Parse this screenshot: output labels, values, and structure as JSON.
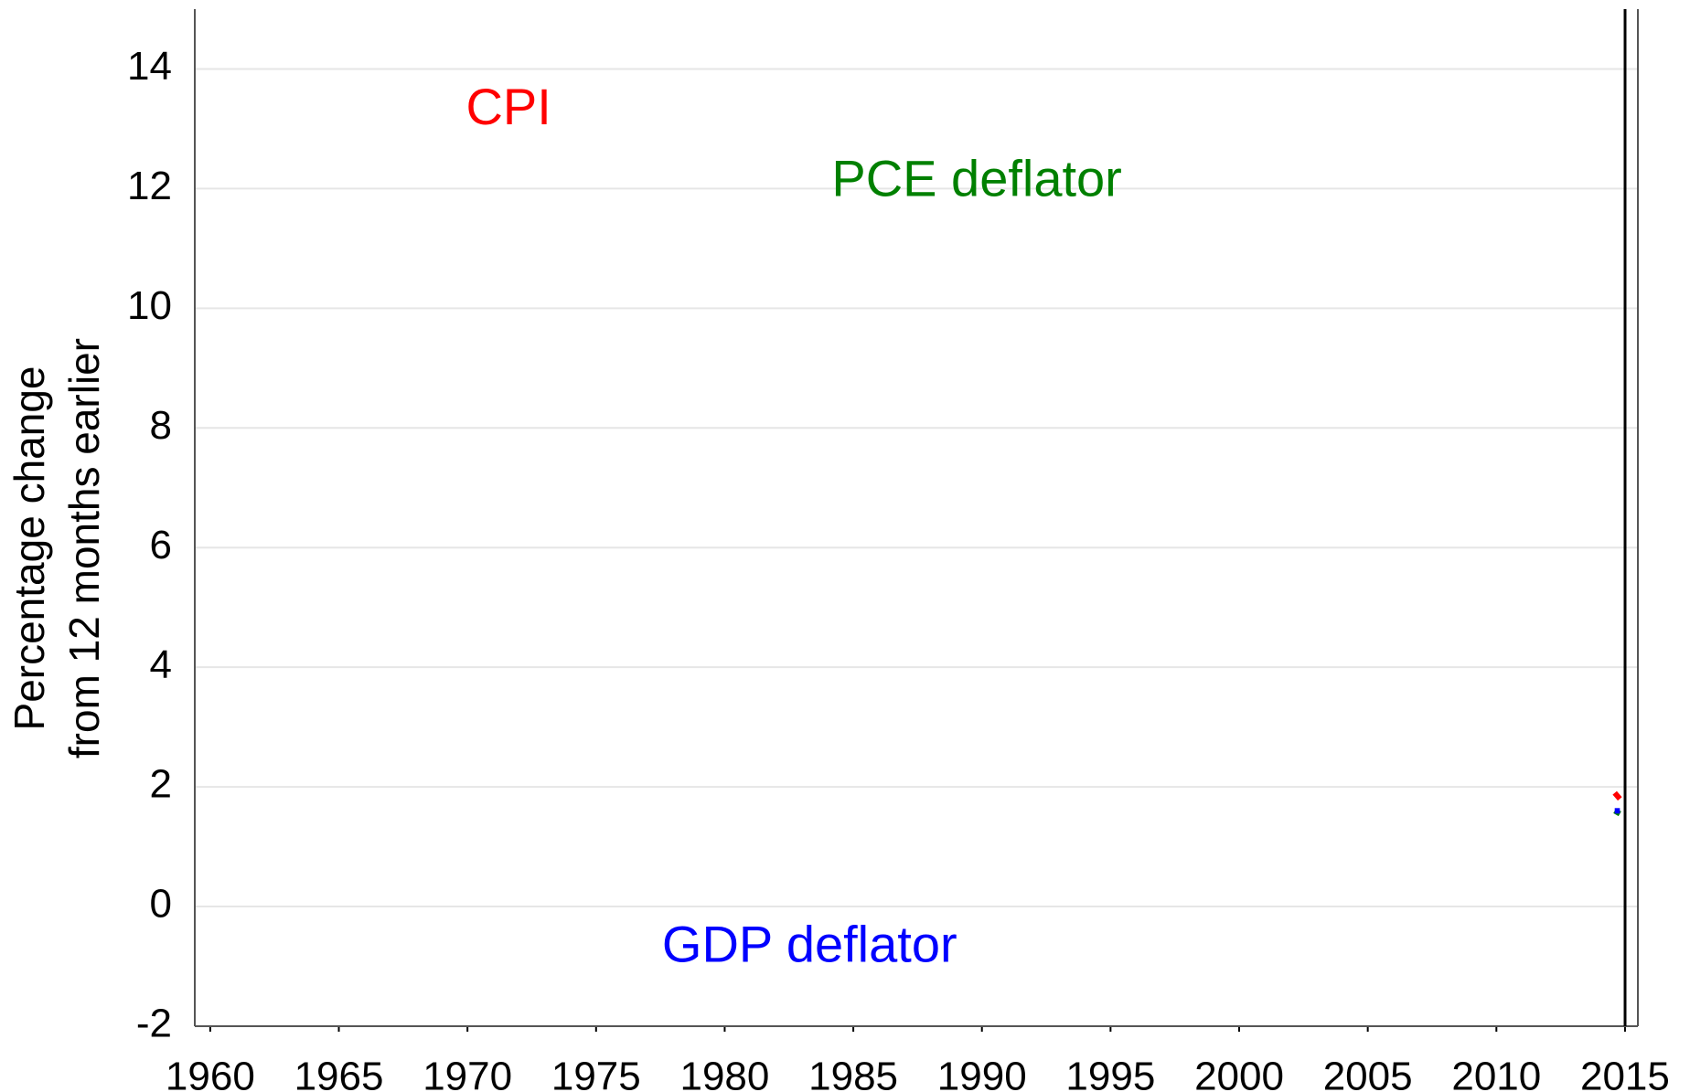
{
  "chart_data": {
    "type": "line",
    "ylabel": [
      "Percentage change",
      "from 12 months earlier"
    ],
    "x": [
      2014.6,
      2014.8
    ],
    "series": [
      {
        "name": "CPI",
        "color": "#ff0000",
        "values": [
          1.9,
          1.8
        ]
      },
      {
        "name": "PCE deflator",
        "color": "#008000",
        "values": [
          1.6,
          1.55
        ]
      },
      {
        "name": "GDP deflator",
        "color": "#0000ff",
        "values": [
          1.6,
          1.6
        ]
      }
    ],
    "annotations": [
      {
        "text": "CPI",
        "x": 1971.6,
        "y": 13.3,
        "color": "#ff0000"
      },
      {
        "text": "PCE deflator",
        "x": 1989.8,
        "y": 12.1,
        "color": "#008000"
      },
      {
        "text": "GDP deflator",
        "x": 1983.3,
        "y": -0.7,
        "color": "#0000ff"
      }
    ],
    "xlim": [
      1959.4,
      2015.5
    ],
    "xticks": [
      1960,
      1965,
      1970,
      1975,
      1980,
      1985,
      1990,
      1995,
      2000,
      2005,
      2010,
      2015
    ],
    "ylim": [
      -2,
      15
    ],
    "yticks": [
      -2,
      0,
      2,
      4,
      6,
      8,
      10,
      12,
      14
    ],
    "grid": true
  }
}
